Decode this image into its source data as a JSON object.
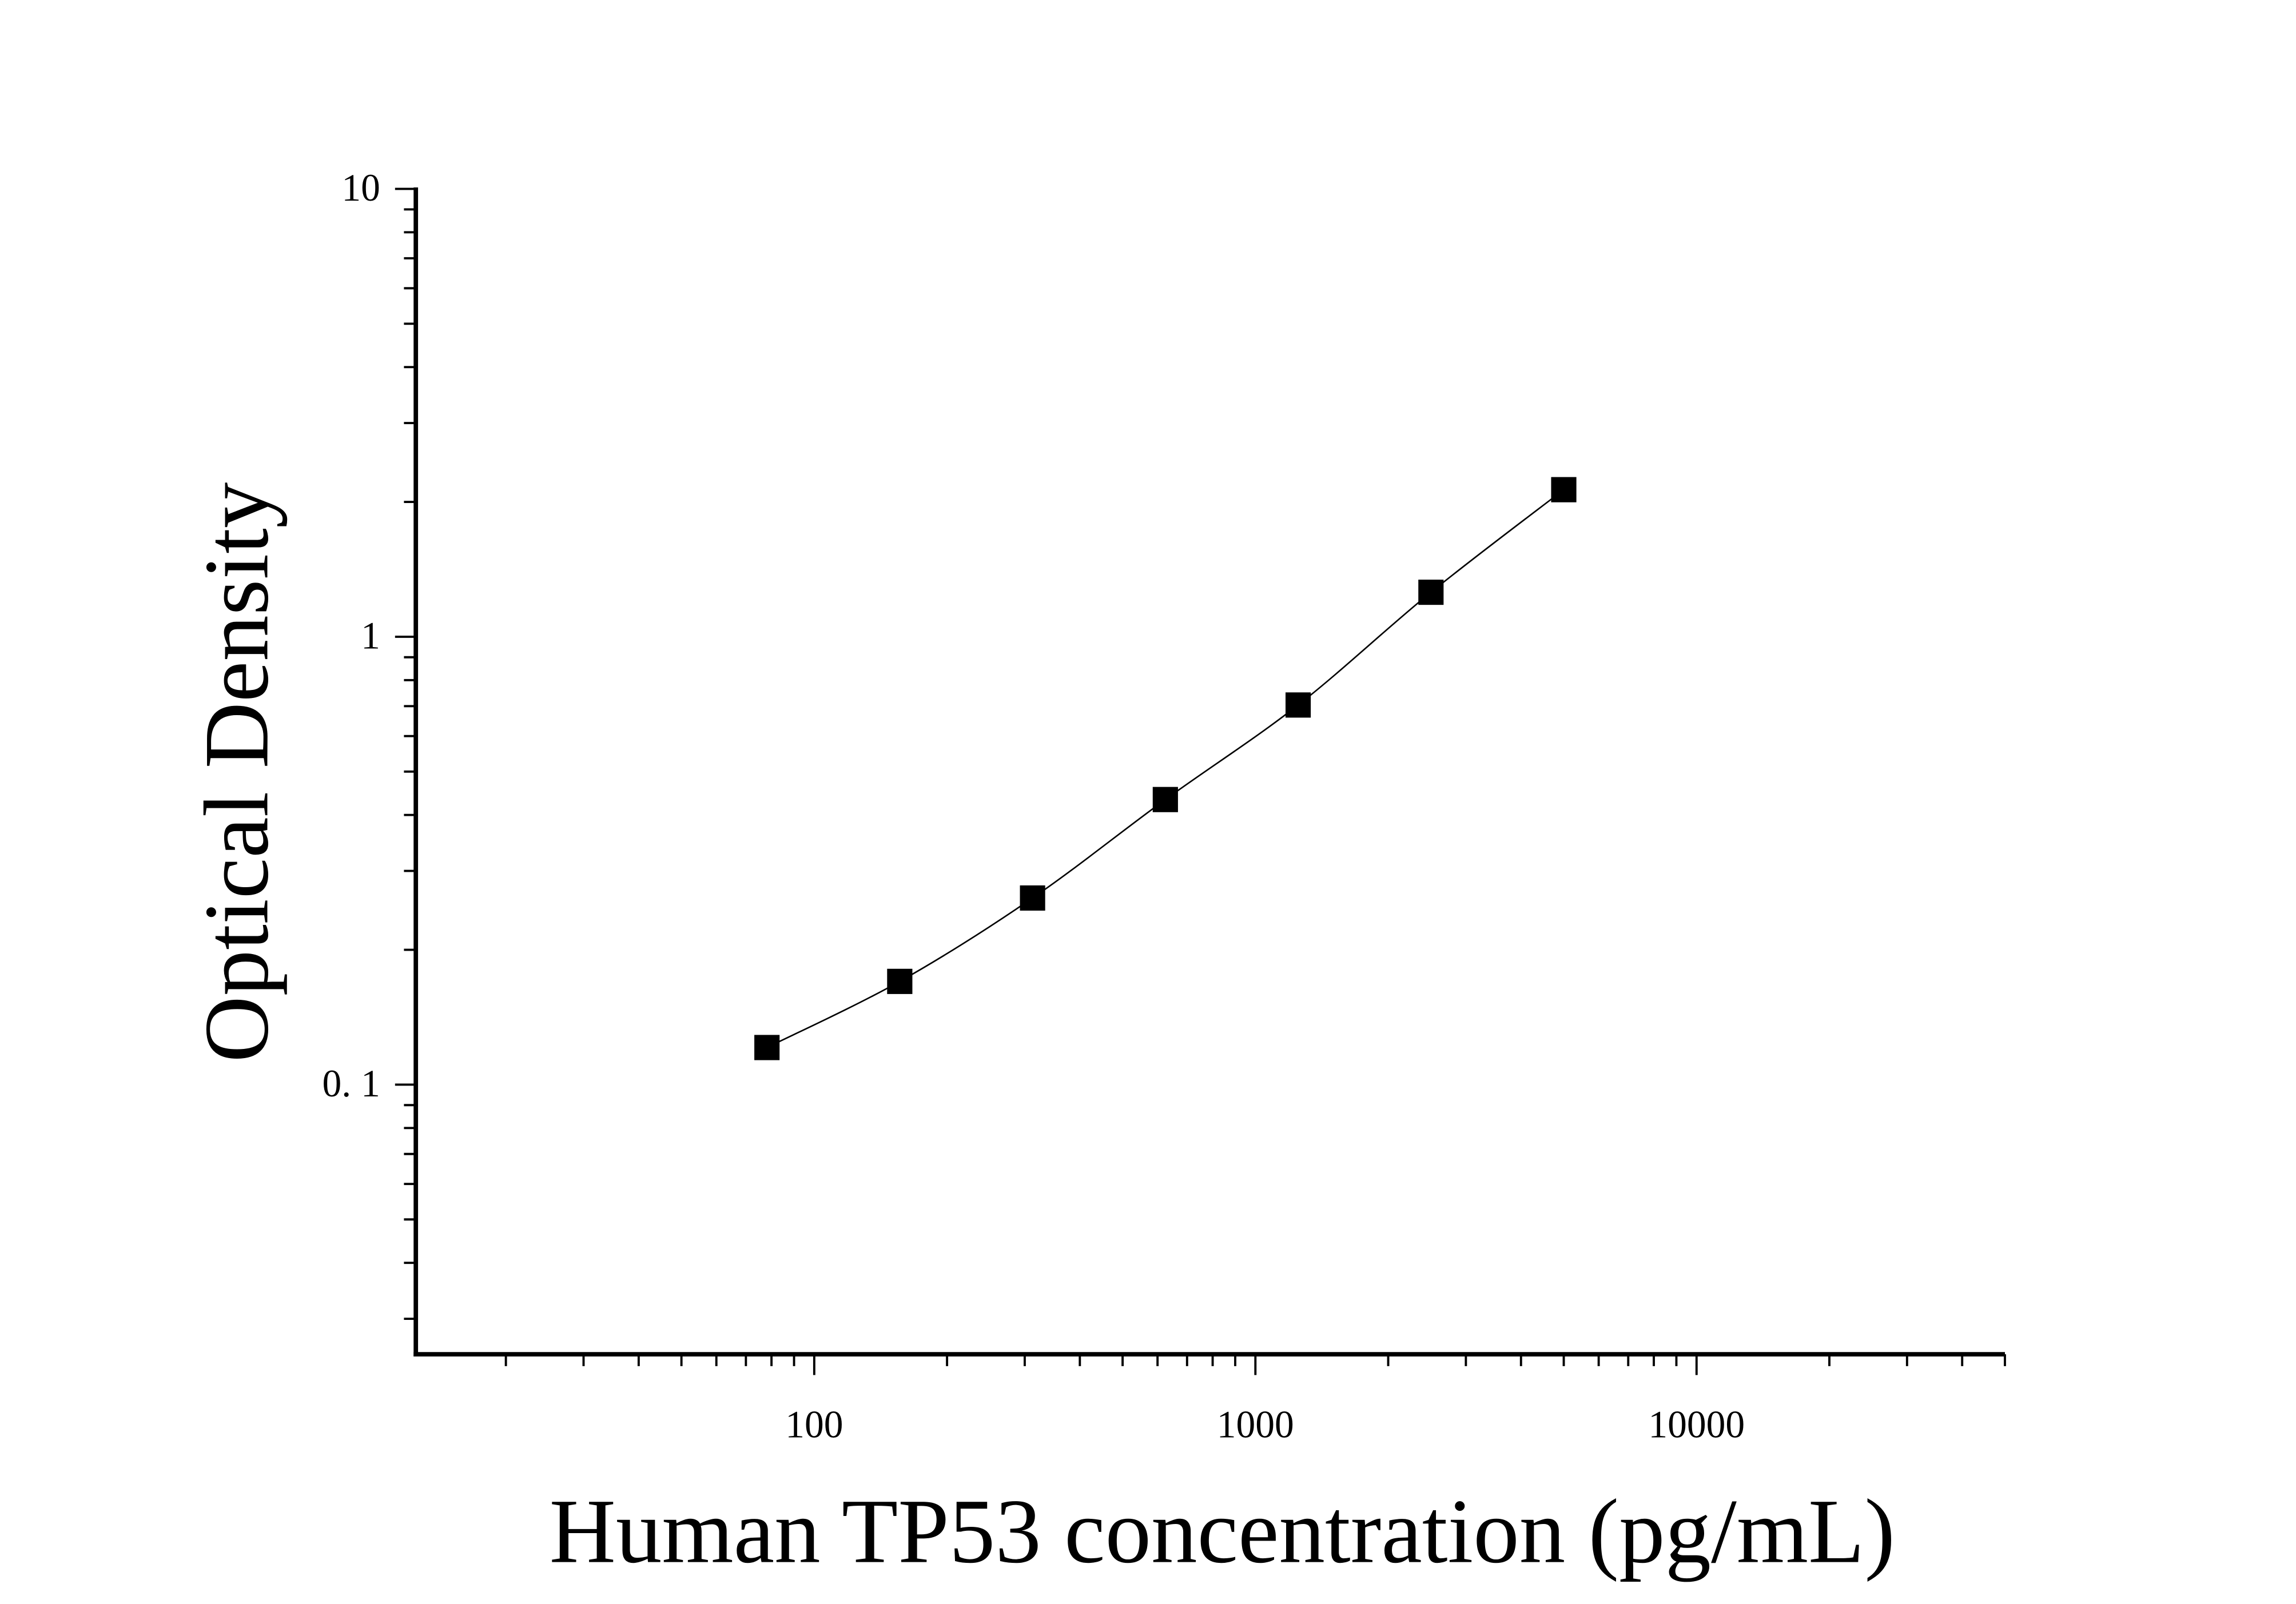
{
  "chart_data": {
    "type": "scatter",
    "xlabel": "Human TP53 concentration (pg/mL)",
    "ylabel": "Optical Density",
    "x_scale": "log",
    "y_scale": "log",
    "xlim": [
      12.5,
      50000
    ],
    "ylim": [
      0.025,
      10
    ],
    "x_ticks": [
      {
        "value": 100,
        "label": "100"
      },
      {
        "value": 1000,
        "label": "1000"
      },
      {
        "value": 10000,
        "label": "10000"
      }
    ],
    "y_ticks": [
      {
        "value": 0.1,
        "label": "0. 1"
      },
      {
        "value": 1,
        "label": "1"
      },
      {
        "value": 10,
        "label": "10"
      }
    ],
    "grid": false,
    "marker": "square",
    "fit_line": "smooth curve through points",
    "colors": {
      "marker": "#000000",
      "line": "#000000"
    },
    "series": [
      {
        "x": [
          78.125,
          156.25,
          312.5,
          625,
          1250,
          2500,
          5000
        ],
        "y": [
          0.121,
          0.17,
          0.261,
          0.433,
          0.704,
          1.257,
          2.13
        ]
      }
    ]
  }
}
